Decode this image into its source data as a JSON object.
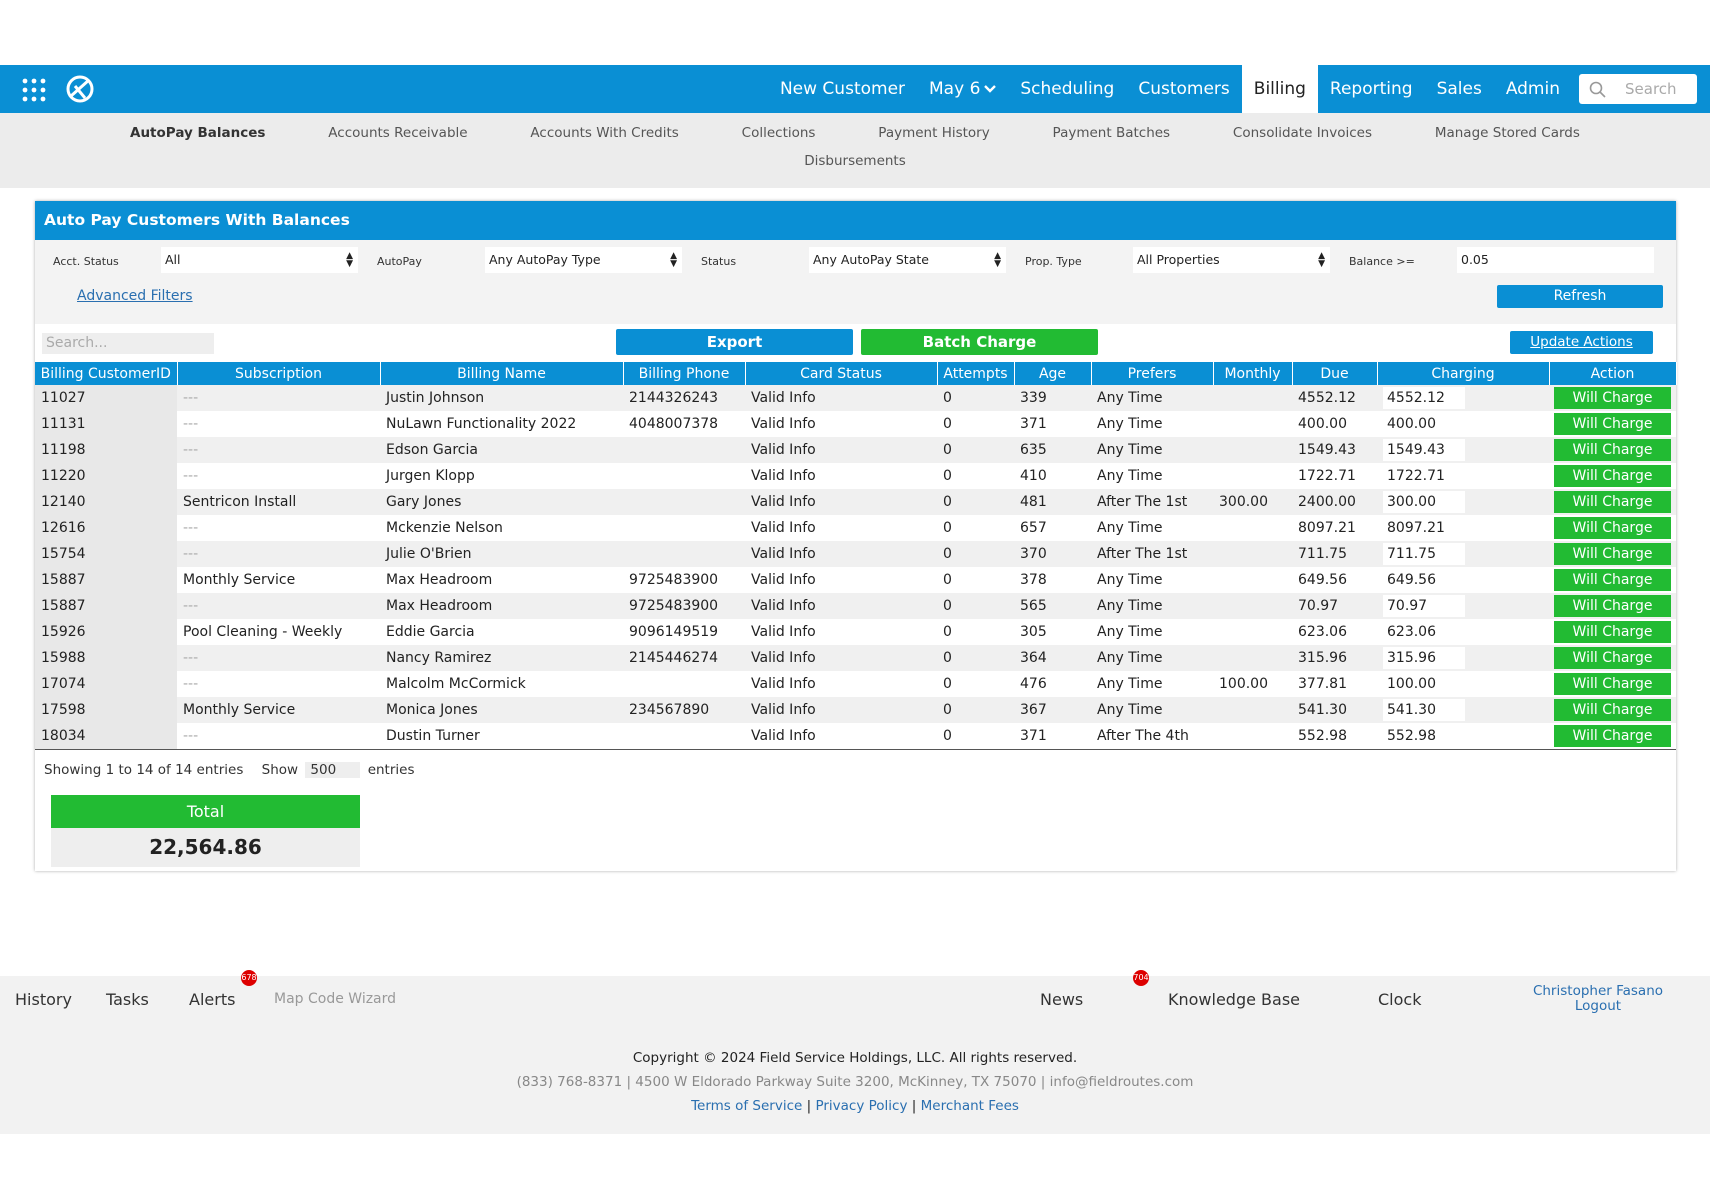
{
  "nav": {
    "items": [
      "New Customer",
      "May 6",
      "Scheduling",
      "Customers",
      "Billing",
      "Reporting",
      "Sales",
      "Admin"
    ],
    "active": 4,
    "search": "Search"
  },
  "subnav": {
    "items": [
      "AutoPay Balances",
      "Accounts Receivable",
      "Accounts With Credits",
      "Collections",
      "Payment History",
      "Payment Batches",
      "Consolidate Invoices",
      "Manage Stored Cards",
      "Disbursements"
    ],
    "active": 0
  },
  "panel": {
    "title": "Auto Pay Customers With Balances",
    "filters": [
      {
        "label": "Acct. Status",
        "value": "All"
      },
      {
        "label": "AutoPay",
        "value": "Any AutoPay Type"
      },
      {
        "label": "Status",
        "value": "Any AutoPay State"
      },
      {
        "label": "Prop. Type",
        "value": "All Properties"
      },
      {
        "label": "Balance >=",
        "value": "0.05"
      }
    ],
    "advanced_filters": "Advanced Filters",
    "refresh": "Refresh",
    "search": "Search...",
    "export": "Export",
    "batch_charge": "Batch Charge",
    "update_actions": "Update Actions"
  },
  "table": {
    "headers": [
      "Billing CustomerID",
      "Subscription",
      "Billing Name",
      "Billing Phone",
      "Card Status",
      "Attempts",
      "Age",
      "Prefers",
      "Monthly",
      "Due",
      "Charging",
      "Action"
    ],
    "rows": [
      [
        "11027",
        "---",
        "Justin Johnson",
        "2144326243",
        "Valid Info",
        "0",
        "339",
        "Any Time",
        "",
        "4552.12",
        "4552.12",
        "Will Charge"
      ],
      [
        "11131",
        "---",
        "NuLawn Functionality 2022",
        "4048007378",
        "Valid Info",
        "0",
        "371",
        "Any Time",
        "",
        "400.00",
        "400.00",
        "Will Charge"
      ],
      [
        "11198",
        "---",
        "Edson Garcia",
        "",
        "Valid Info",
        "0",
        "635",
        "Any Time",
        "",
        "1549.43",
        "1549.43",
        "Will Charge"
      ],
      [
        "11220",
        "---",
        "Jurgen Klopp",
        "",
        "Valid Info",
        "0",
        "410",
        "Any Time",
        "",
        "1722.71",
        "1722.71",
        "Will Charge"
      ],
      [
        "12140",
        "Sentricon Install",
        "Gary Jones",
        "",
        "Valid Info",
        "0",
        "481",
        "After The 1st",
        "300.00",
        "2400.00",
        "300.00",
        "Will Charge"
      ],
      [
        "12616",
        "---",
        "Mckenzie Nelson",
        "",
        "Valid Info",
        "0",
        "657",
        "Any Time",
        "",
        "8097.21",
        "8097.21",
        "Will Charge"
      ],
      [
        "15754",
        "---",
        "Julie O'Brien",
        "",
        "Valid Info",
        "0",
        "370",
        "After The 1st",
        "",
        "711.75",
        "711.75",
        "Will Charge"
      ],
      [
        "15887",
        "Monthly Service",
        "Max Headroom",
        "9725483900",
        "Valid Info",
        "0",
        "378",
        "Any Time",
        "",
        "649.56",
        "649.56",
        "Will Charge"
      ],
      [
        "15887",
        "---",
        "Max Headroom",
        "9725483900",
        "Valid Info",
        "0",
        "565",
        "Any Time",
        "",
        "70.97",
        "70.97",
        "Will Charge"
      ],
      [
        "15926",
        "Pool Cleaning - Weekly",
        "Eddie Garcia",
        "9096149519",
        "Valid Info",
        "0",
        "305",
        "Any Time",
        "",
        "623.06",
        "623.06",
        "Will Charge"
      ],
      [
        "15988",
        "---",
        "Nancy Ramirez",
        "2145446274",
        "Valid Info",
        "0",
        "364",
        "Any Time",
        "",
        "315.96",
        "315.96",
        "Will Charge"
      ],
      [
        "17074",
        "---",
        "Malcolm McCormick",
        "",
        "Valid Info",
        "0",
        "476",
        "Any Time",
        "100.00",
        "377.81",
        "100.00",
        "Will Charge"
      ],
      [
        "17598",
        "Monthly Service",
        "Monica Jones",
        "234567890",
        "Valid Info",
        "0",
        "367",
        "Any Time",
        "",
        "541.30",
        "541.30",
        "Will Charge"
      ],
      [
        "18034",
        "---",
        "Dustin Turner",
        "",
        "Valid Info",
        "0",
        "371",
        "After The 4th",
        "",
        "552.98",
        "552.98",
        "Will Charge"
      ]
    ],
    "info": "Showing 1 to 14 of 14 entries",
    "show": "Show",
    "page_size": "500",
    "entries": "entries"
  },
  "total": {
    "label": "Total",
    "value": "22,564.86"
  },
  "bottom_bar": {
    "history": "History",
    "tasks": "Tasks",
    "alerts": "Alerts",
    "alerts_badge": "678",
    "map_code_wizard": "Map Code Wizard",
    "news": "News",
    "news_badge": "704",
    "knowledge_base": "Knowledge Base",
    "clock": "Clock",
    "user": "Christopher Fasano",
    "logout": "Logout"
  },
  "footer": {
    "copyright": "Copyright © 2024 Field Service Holdings, LLC. All rights reserved.",
    "contact": "(833) 768-8371 | 4500 W Eldorado Parkway Suite 3200, McKinney, TX 75070 | info@fieldroutes.com",
    "links": [
      "Terms of Service",
      "Privacy Policy",
      "Merchant Fees"
    ],
    "separator": "|"
  }
}
